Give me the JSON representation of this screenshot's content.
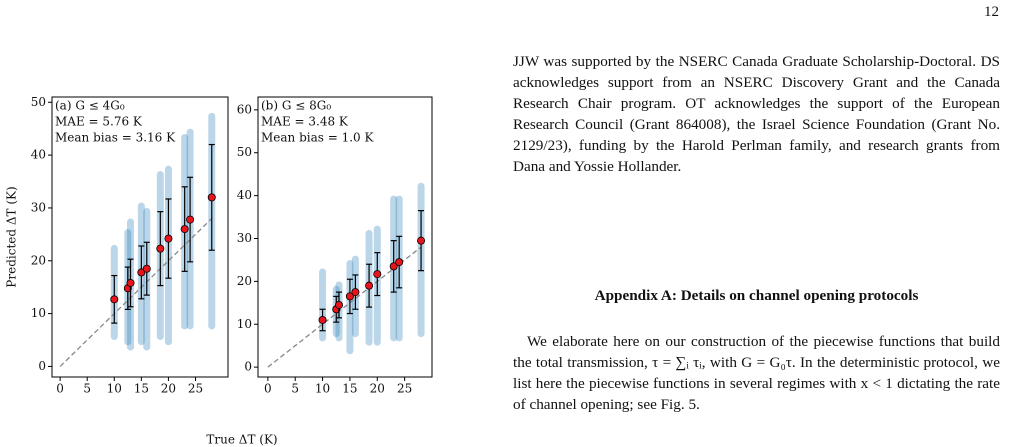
{
  "page_number": "12",
  "paragraphs": [
    "JJW was supported by the NSERC Canada Graduate Scholarship-Doctoral. DS acknowledges support from an NSERC Discovery Grant and the Canada Research Chair program. OT acknowledges the support of the European Research Council (Grant 864008), the Israel Science Foundation (Grant No. 2129/23), funding by the Harold Perlman family, and research grants from Dana and Yossie Hollander.",
    "We elaborate here on our construction of the piecewise functions that build the total transmission, τ = ∑ᵢ τᵢ, with G = G₀τ. In the deterministic protocol, we list here the piecewise functions in several regimes with x < 1 dictating the rate of channel opening; see Fig. 5."
  ],
  "heading": "Appendix A: Details on channel opening protocols",
  "chart_data": [
    {
      "type": "scatter",
      "ylabel": "Predicted ΔT (K)",
      "xlabel": "True ΔT (K)",
      "annotations": [
        "(a) G ≤ 4G₀",
        "MAE = 5.76 K",
        "Mean bias = 3.16 K"
      ],
      "xlim": [
        -1.5,
        31
      ],
      "ylim": [
        -2,
        51
      ],
      "xticks": [
        0,
        5,
        10,
        15,
        20,
        25
      ],
      "yticks": [
        0,
        10,
        20,
        30,
        40,
        50
      ],
      "color": "#1f77b4",
      "mean_color": "#e8141c",
      "x": [
        10,
        12.5,
        13,
        15,
        16,
        18.5,
        20,
        23,
        24,
        28
      ],
      "means": [
        12.7,
        14.8,
        15.8,
        17.8,
        18.5,
        22.3,
        24.2,
        26,
        27.8,
        32
      ],
      "errors": [
        4.5,
        4,
        4.5,
        5,
        5,
        7,
        7.5,
        8,
        8,
        10
      ],
      "samples_low": [
        5,
        4,
        3,
        4,
        3,
        5,
        4,
        7,
        7,
        7
      ],
      "samples_high": [
        23,
        26,
        28,
        31,
        30,
        37,
        38,
        44,
        45,
        48
      ]
    },
    {
      "type": "scatter",
      "annotations": [
        "(b) G ≤ 8G₀",
        "MAE = 3.48 K",
        "Mean bias = 1.0 K"
      ],
      "xlim": [
        -1.8,
        30
      ],
      "ylim": [
        -2.3,
        63
      ],
      "xticks": [
        0,
        5,
        10,
        15,
        20,
        25
      ],
      "yticks": [
        0,
        10,
        20,
        30,
        40,
        50,
        60
      ],
      "color": "#1f77b4",
      "mean_color": "#e8141c",
      "x": [
        10,
        12.5,
        13,
        15,
        16,
        18.5,
        20,
        23,
        24,
        28
      ],
      "means": [
        11,
        13.5,
        14.5,
        16.5,
        17.5,
        19,
        21.7,
        23.5,
        24.5,
        29.5
      ],
      "errors": [
        2.5,
        3,
        3,
        4,
        4,
        5,
        5,
        6,
        6,
        7
      ],
      "samples_low": [
        6,
        7,
        6,
        3,
        7,
        5,
        5,
        6,
        6,
        7
      ],
      "samples_high": [
        23,
        19,
        20,
        25,
        26,
        32,
        33,
        40,
        40,
        43
      ]
    }
  ]
}
